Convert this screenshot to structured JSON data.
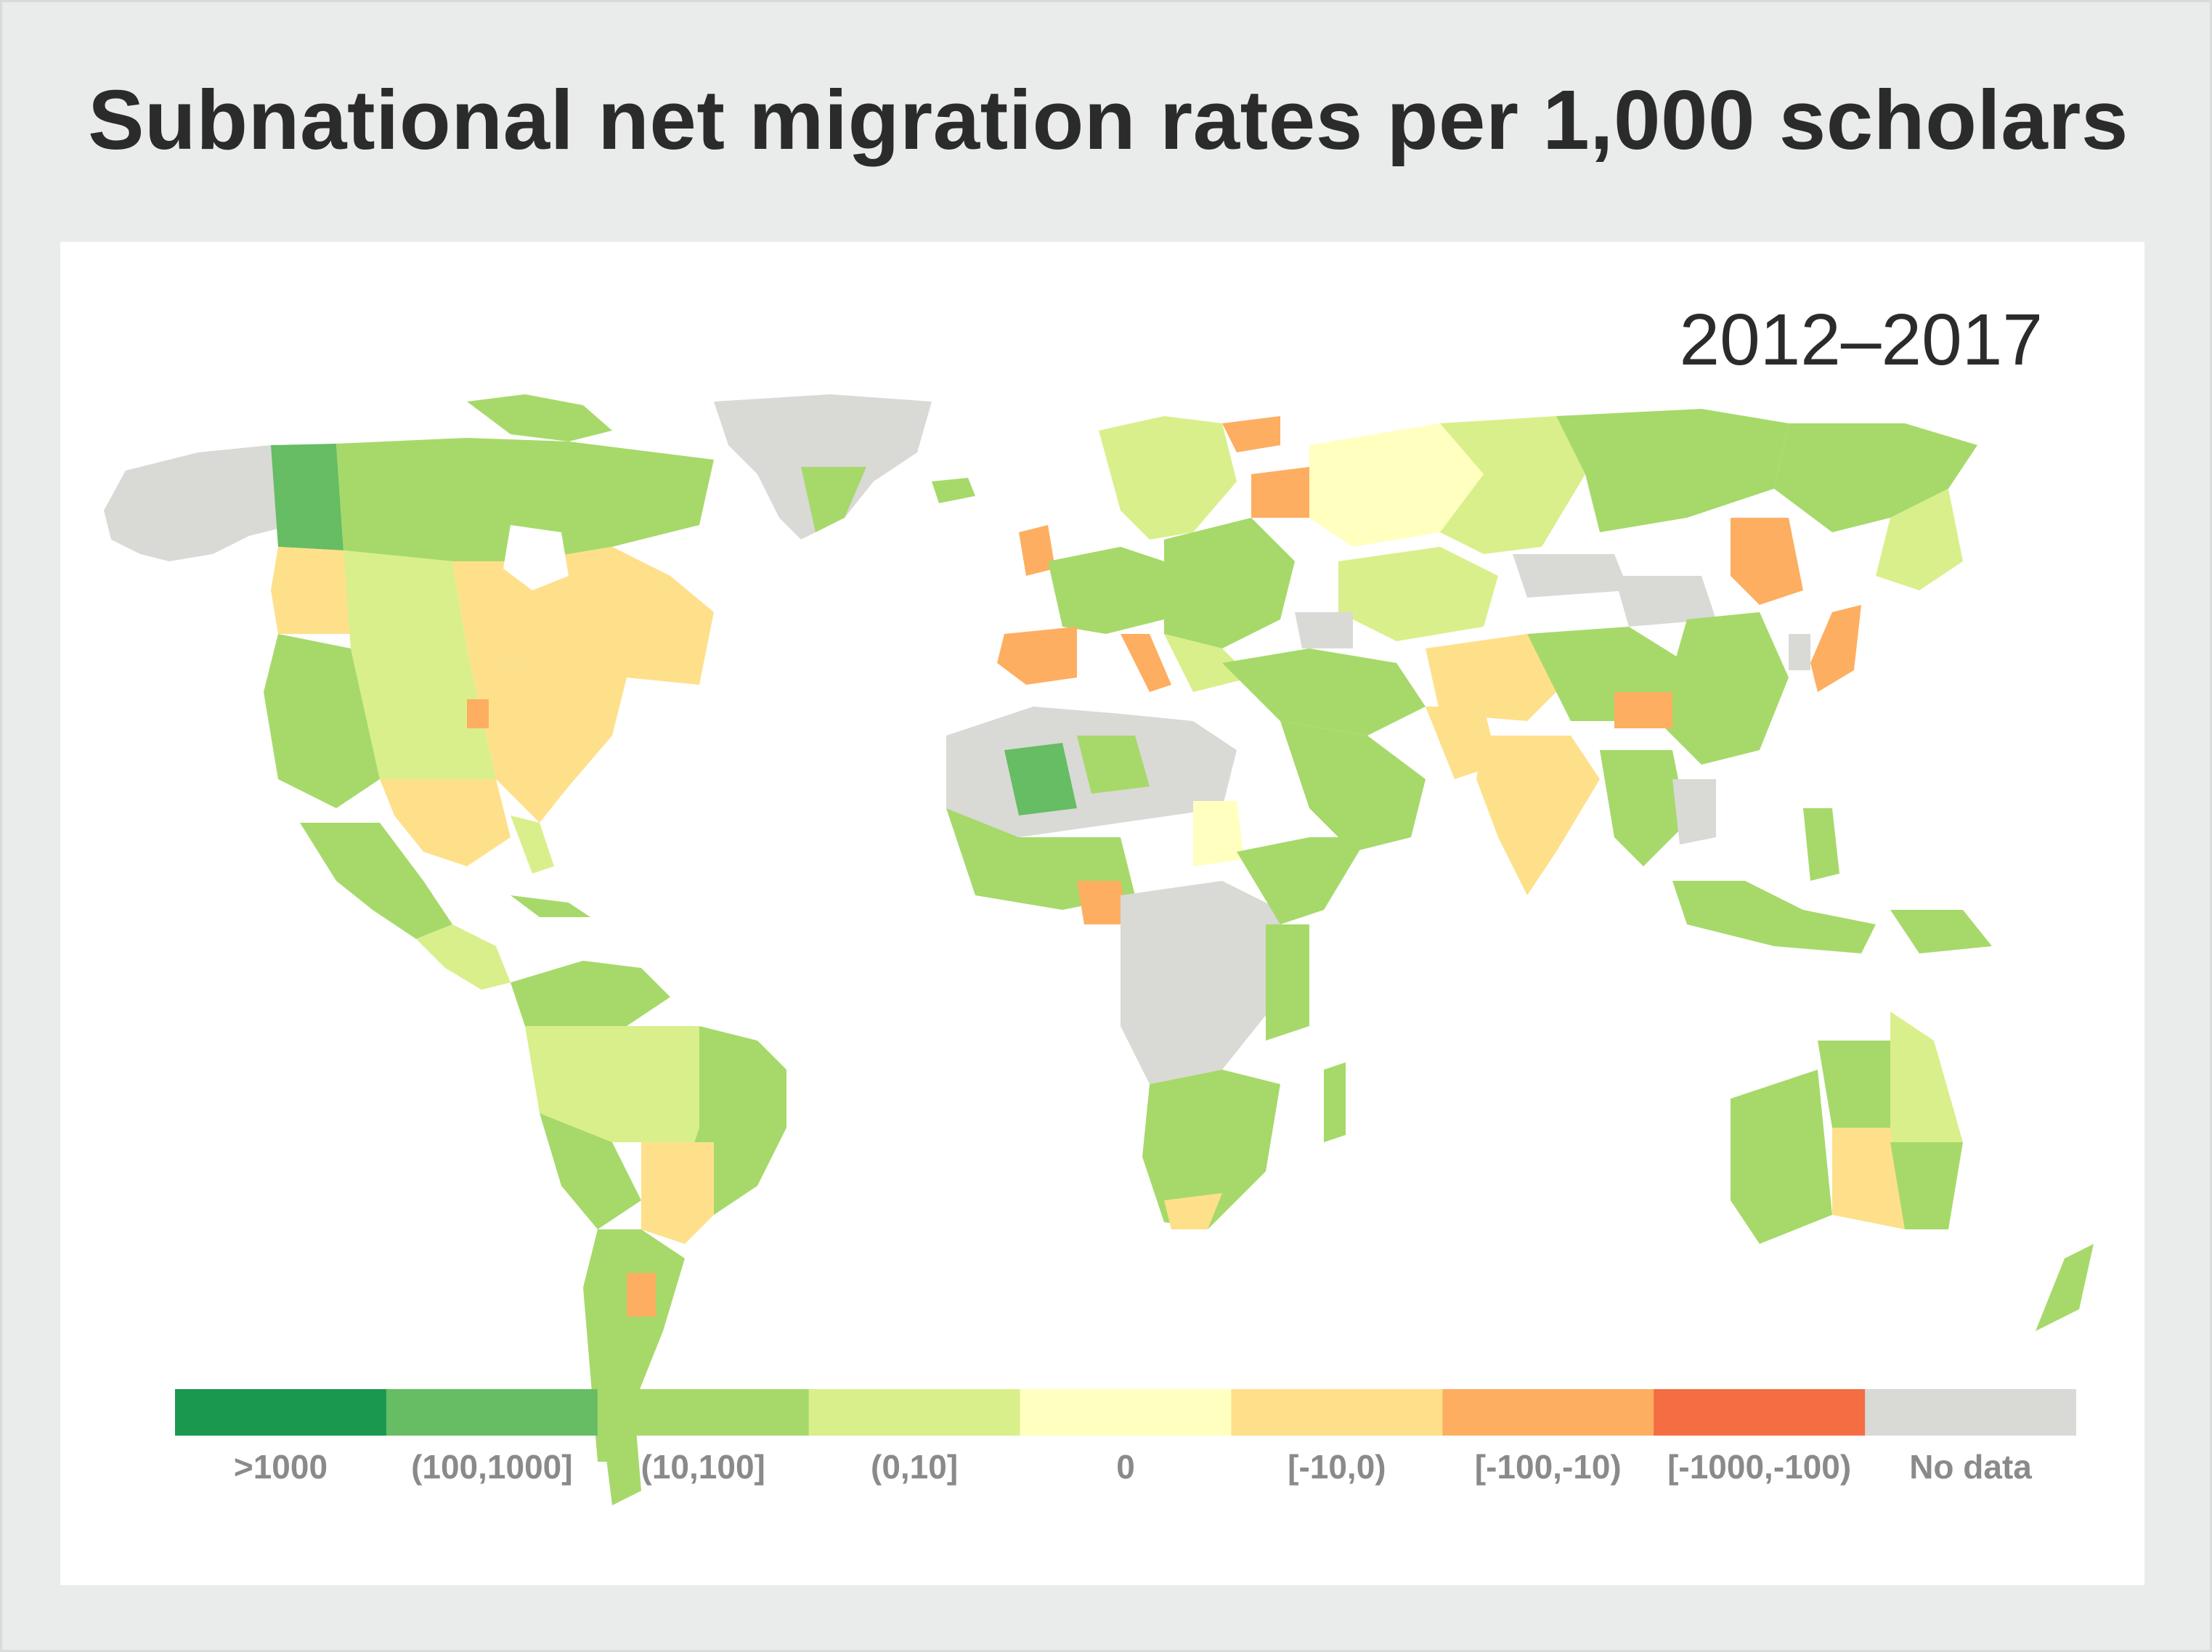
{
  "title": "Subnational net migration rates per 1,000 scholars",
  "period": "2012–2017",
  "legend": [
    {
      "label": ">1000",
      "color": "#1a9850"
    },
    {
      "label": "(100,1000]",
      "color": "#66bd63"
    },
    {
      "label": "(10,100]",
      "color": "#a6d96a"
    },
    {
      "label": "(0,10]",
      "color": "#d9ef8b"
    },
    {
      "label": "0",
      "color": "#ffffbf"
    },
    {
      "label": "[-10,0)",
      "color": "#fee08b"
    },
    {
      "label": "[-100,-10)",
      "color": "#fdae61"
    },
    {
      "label": "[-1000,-100)",
      "color": "#f46d43"
    },
    {
      "label": "No data",
      "color": "#d9d9d6"
    }
  ],
  "colors": {
    "background": "#eaeceb",
    "panel": "#ffffff",
    "text": "#2b2b2b",
    "legend_text": "#8a8a8a"
  }
}
